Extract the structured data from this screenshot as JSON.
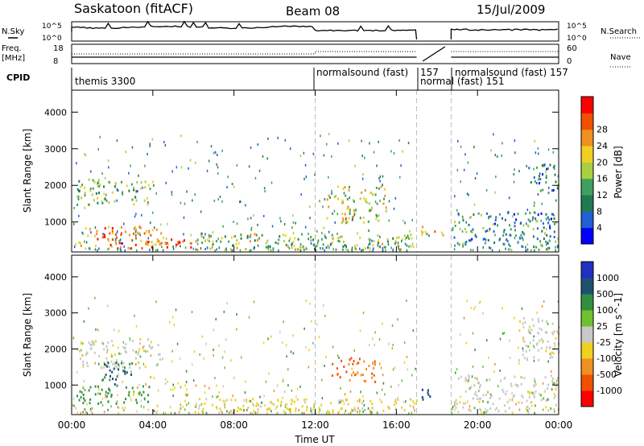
{
  "header": {
    "station": "Saskatoon (fitACF)",
    "beam": "Beam 08",
    "date": "15/Jul/2009"
  },
  "summary": {
    "nsky_label": "N.Sky",
    "nsearch_label": "N.Search",
    "freq_label_1": "Freq.",
    "freq_label_2": "[MHz]",
    "nave_label": "Nave",
    "cpid_label": "CPID",
    "nsky_ticks": [
      "10^5",
      "10^0"
    ],
    "nsearch_ticks": [
      "10^5",
      "10^0"
    ],
    "freq_ticks": [
      "18",
      "8"
    ],
    "nave_ticks": [
      "60",
      "0"
    ],
    "cpid_segments": [
      {
        "label": "themis 3300",
        "start_hour": 0,
        "end_hour": 12
      },
      {
        "label": "normalsound (fast)",
        "start_hour": 12,
        "end_hour": 17
      },
      {
        "label": "157",
        "start_hour": 17,
        "end_hour": 18.7
      },
      {
        "label": "normal (fast) 151",
        "start_hour": 17,
        "end_hour": 18.7
      },
      {
        "label": "normalsound (fast) 157",
        "start_hour": 18.7,
        "end_hour": 24
      }
    ]
  },
  "chart_data": [
    {
      "type": "heatmap",
      "quantity": "Power",
      "ylabel": "Slant Range [km]",
      "ylim": [
        180,
        4600
      ],
      "y_ticks": [
        "1000",
        "2000",
        "3000",
        "4000"
      ],
      "colorbar_label": "Power [dB]",
      "colorbar_ticks": [
        "4",
        "8",
        "12",
        "16",
        "20",
        "24",
        "28"
      ],
      "colorbar_colors": [
        "#0000ff",
        "#2060d0",
        "#207a50",
        "#40a060",
        "#a8d040",
        "#f0d020",
        "#f09020",
        "#f05000",
        "#ff0000"
      ],
      "regions": [
        {
          "x0": 0.3,
          "x1": 4.5,
          "y0": 300,
          "y1": 900,
          "level": 24
        },
        {
          "x0": 2.0,
          "x1": 6.0,
          "y0": 300,
          "y1": 600,
          "level": 28
        },
        {
          "x0": 0.2,
          "x1": 4.0,
          "y0": 1500,
          "y1": 2200,
          "level": 14
        },
        {
          "x0": 6.0,
          "x1": 17.0,
          "y0": 250,
          "y1": 700,
          "level": 16
        },
        {
          "x0": 12.5,
          "x1": 15.5,
          "y0": 1000,
          "y1": 2000,
          "level": 18
        },
        {
          "x0": 17.2,
          "x1": 18.4,
          "y0": 600,
          "y1": 900,
          "level": 20
        },
        {
          "x0": 18.8,
          "x1": 24.0,
          "y0": 300,
          "y1": 1300,
          "level": 10
        },
        {
          "x0": 22.5,
          "x1": 24.0,
          "y0": 1800,
          "y1": 2600,
          "level": 8
        }
      ]
    },
    {
      "type": "heatmap",
      "quantity": "Velocity",
      "xlabel": "Time UT",
      "ylabel": "Slant Range [km]",
      "ylim": [
        180,
        4600
      ],
      "xlim": [
        0,
        24
      ],
      "x_ticks": [
        "00:00",
        "04:00",
        "08:00",
        "12:00",
        "16:00",
        "20:00",
        "00:00"
      ],
      "y_ticks": [
        "1000",
        "2000",
        "3000",
        "4000"
      ],
      "colorbar_label": "Velocity [m s^-1]",
      "colorbar_ticks": [
        "1000",
        "500",
        "100",
        "25",
        "-25",
        "-100",
        "-500",
        "-1000"
      ],
      "colorbar_colors": [
        "#2030c0",
        "#205070",
        "#309040",
        "#70c030",
        "#c8c8c8",
        "#f0d020",
        "#f09020",
        "#f05000",
        "#ff0000"
      ],
      "regions": [
        {
          "x0": 0.2,
          "x1": 4.5,
          "y0": 1500,
          "y1": 2300,
          "vel": 0
        },
        {
          "x0": 0.2,
          "x1": 4.0,
          "y0": 500,
          "y1": 1000,
          "vel": 150
        },
        {
          "x0": 1.5,
          "x1": 3.0,
          "y0": 1000,
          "y1": 1700,
          "vel": 500
        },
        {
          "x0": 12.8,
          "x1": 15.0,
          "y0": 1100,
          "y1": 1800,
          "vel": -500
        },
        {
          "x0": 6.0,
          "x1": 17.0,
          "y0": 250,
          "y1": 650,
          "vel": -50
        },
        {
          "x0": 17.2,
          "x1": 18.4,
          "y0": 600,
          "y1": 900,
          "vel": 800
        },
        {
          "x0": 18.8,
          "x1": 24.0,
          "y0": 300,
          "y1": 1300,
          "vel": 0
        },
        {
          "x0": 22.0,
          "x1": 24.0,
          "y0": 1700,
          "y1": 2900,
          "vel": 0
        }
      ]
    }
  ]
}
